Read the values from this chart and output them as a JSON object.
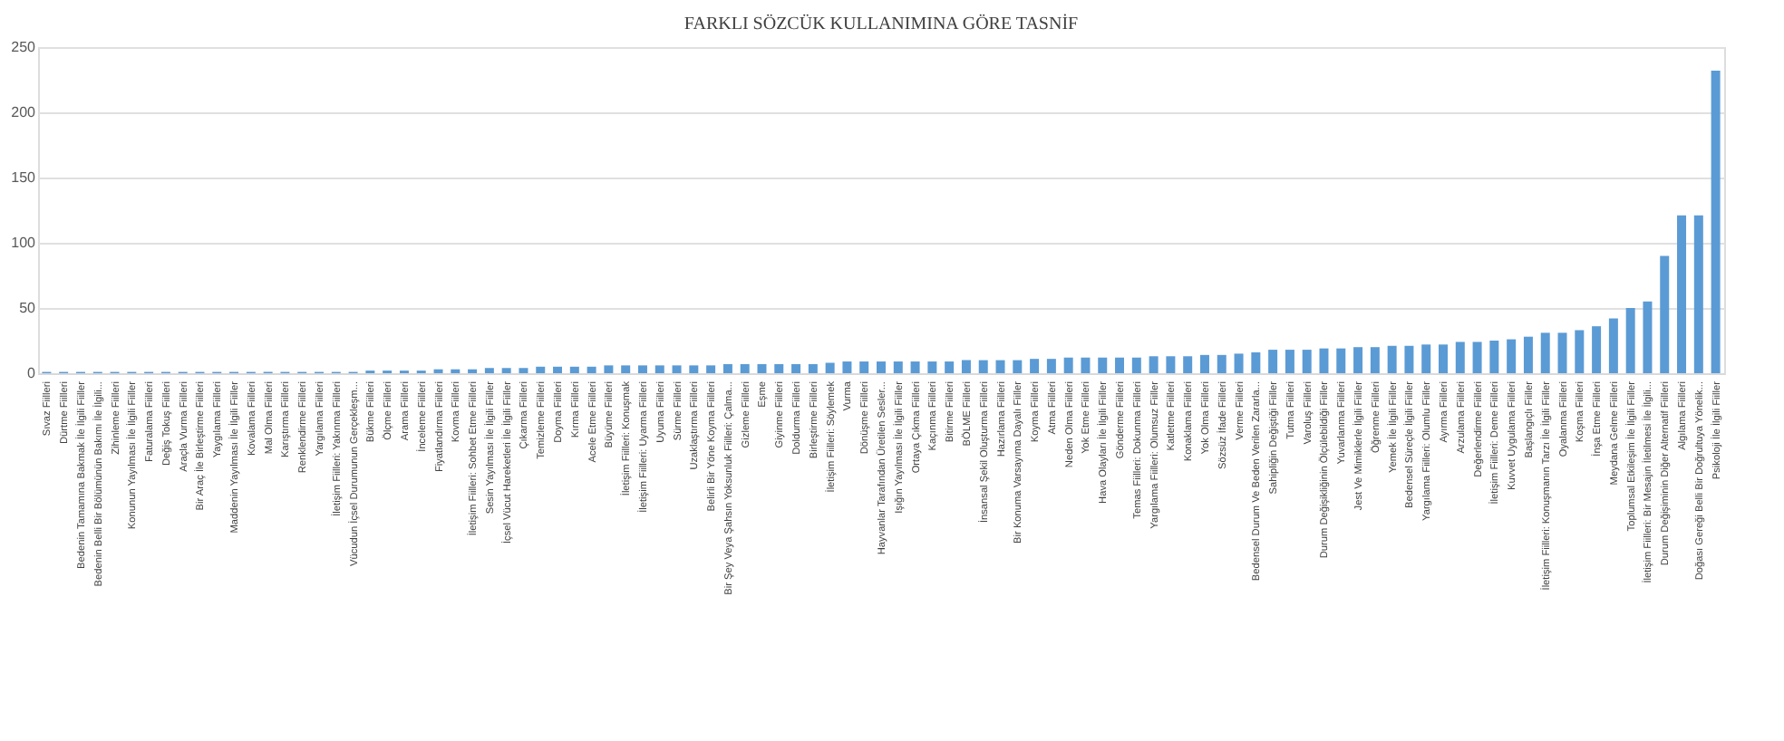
{
  "chart_data": {
    "type": "bar",
    "title": "FARKLI SÖZCÜK KULLANIMINA GÖRE TASNİF",
    "color": "#5b9bd5",
    "categories": [
      "Sıvaz Fiilleri",
      "Dürtme Fiilleri",
      "Bedenin Tamamına Bakmak İle İlgili Fiiller",
      "Bedenin Belli Bir Bölümünün Bakımı İle İlgili...",
      "Zihinleme Fiilleri",
      "Konunun Yayılması İle İlgili Fiiller",
      "Faturalama Fiilleri",
      "Değiş Tokuş Fiilleri",
      "Araçla Vurma Fiilleri",
      "Bir Araç İle Birleştirme Fiilleri",
      "Yaygılama Fiilleri",
      "Maddenin Yayılması İle İlgili Fiiller",
      "Kovalama Fiilleri",
      "Mal Olma Fiilleri",
      "Karıştırma Fiilleri",
      "Renklendirme Fiilleri",
      "Yargılama Fiilleri",
      "İletişim Fiilleri: Yakınma Fiilleri",
      "Vücudun İçsel Durumunun Gerçekleşm...",
      "Bükme Fiilleri",
      "Ölçme Fiilleri",
      "Arama Fiilleri",
      "İnceleme Fiilleri",
      "Fiyatlandırma Fiilleri",
      "Kovma Fiilleri",
      "İletişim Fiilleri: Sohbet Etme Fiilleri",
      "Sesin Yayılması İle İlgili Fiiller",
      "İçsel Vücut Hareketleri İle İlgili Fiiller",
      "Çıkarma Fiilleri",
      "Temizleme Fiilleri",
      "Doyma Fiilleri",
      "Kırma Fiilleri",
      "Acele Etme Fiilleri",
      "Büyüme Fiilleri",
      "İletişim Fiilleri: Konuşmak",
      "İletişim Fiilleri: Uyarma Fiilleri",
      "Uyuma Fiilleri",
      "Sürme Fiilleri",
      "Uzaklaştırma Fiilleri",
      "Belirli Bir Yöne Koyma Fiilleri",
      "Bir Şey Veya Şahsın Yoksunluk Fiilleri: Çalma...",
      "Gizleme Fiilleri",
      "Eşme",
      "Giyinme Fiilleri",
      "Doldurma Fiilleri",
      "Birleştirme Fiilleri",
      "İletişim Fiilleri: Söylemek",
      "Vurma",
      "Dönüşme Fiilleri",
      "Hayvanlar Tarafından Üretilen Sesler...",
      "Işığın Yayılması İle İlgili Fiiller",
      "Ortaya Çıkma Fiilleri",
      "Kaçınma Fiilleri",
      "Bitirme Fiilleri",
      "BÖLME Fiilleri",
      "İnsansal Şekil Oluşturma Fiilleri",
      "Hazırlama Fiilleri",
      "Bir Konuma Varsayıma Dayalı Fiiller",
      "Koyma Fiilleri",
      "Atma Fiilleri",
      "Neden Olma Fiilleri",
      "Yok Etme Fiilleri",
      "Hava Olayları İle İlgili Fiiller",
      "Gönderme Fiilleri",
      "Temas Fiilleri: Dokunma Fiilleri",
      "Yargılama Fiilleri: Olumsuz Fiiller",
      "Katletme Fiilleri",
      "Konaklama Fiilleri",
      "Yok Olma Fiilleri",
      "Sözsüz İfade Fiilleri",
      "Verme Fiilleri",
      "Bedensel Durum Ve Beden Verilen Zararla...",
      "Sahipliğin Değiştiği Fiiller",
      "Tutma Fiilleri",
      "Varoluş Fiilleri",
      "Durum Değişikliğinin Ölçülebildiği Fiiller",
      "Yuvarlanma Fiilleri",
      "Jest Ve Mimiklerle İlgili Fiiller",
      "Öğrenme Fiilleri",
      "Yemek İle İlgili Fiiller",
      "Bedensel Süreçle İlgili Fiiller",
      "Yargılama Fiilleri: Olumlu Fiiller",
      "Ayırma Fiilleri",
      "Arzulama Fiilleri",
      "Değerlendirme Fiilleri",
      "İletişim Fiilleri: Deme Fiilleri",
      "Kuvvet Uygulama Fiilleri",
      "Başlangıçlı Fiiller",
      "İletişim Fiilleri: Konuşmanın Tarzı İle İlgili Fiiller",
      "Oyalanma Fiilleri",
      "Koşma Fiilleri",
      "İnşa Etme Fiilleri",
      "Meydana Gelme Fiilleri",
      "Toplumsal Etkileşim İle İlgili Fiiller",
      "İletişim Fiilleri: Bir Mesajın İletilmesi İle İlgili...",
      "Durum Değişiminin Diğer Alternatif Fiilleri",
      "Algılama Fiilleri",
      "Doğası Gereği Belli Bir Doğrultuya Yönelik...",
      "Psikoloji İle İlgili Fiiller"
    ],
    "values": [
      1,
      1,
      1,
      1,
      1,
      1,
      1,
      1,
      1,
      1,
      1,
      1,
      1,
      1,
      1,
      1,
      1,
      1,
      1,
      2,
      2,
      2,
      2,
      3,
      3,
      3,
      4,
      4,
      4,
      5,
      5,
      5,
      5,
      6,
      6,
      6,
      6,
      6,
      6,
      6,
      7,
      7,
      7,
      7,
      7,
      7,
      8,
      9,
      9,
      9,
      9,
      9,
      9,
      9,
      10,
      10,
      10,
      10,
      11,
      11,
      12,
      12,
      12,
      12,
      12,
      13,
      13,
      13,
      14,
      14,
      15,
      16,
      18,
      18,
      18,
      19,
      19,
      20,
      20,
      21,
      21,
      22,
      22,
      24,
      24,
      25,
      26,
      28,
      31,
      31,
      33,
      36,
      42,
      50,
      55,
      90,
      121,
      121,
      232
    ],
    "ylim": [
      0,
      250
    ],
    "yticks": [
      0,
      50,
      100,
      150,
      200,
      250
    ],
    "grid": "y"
  }
}
